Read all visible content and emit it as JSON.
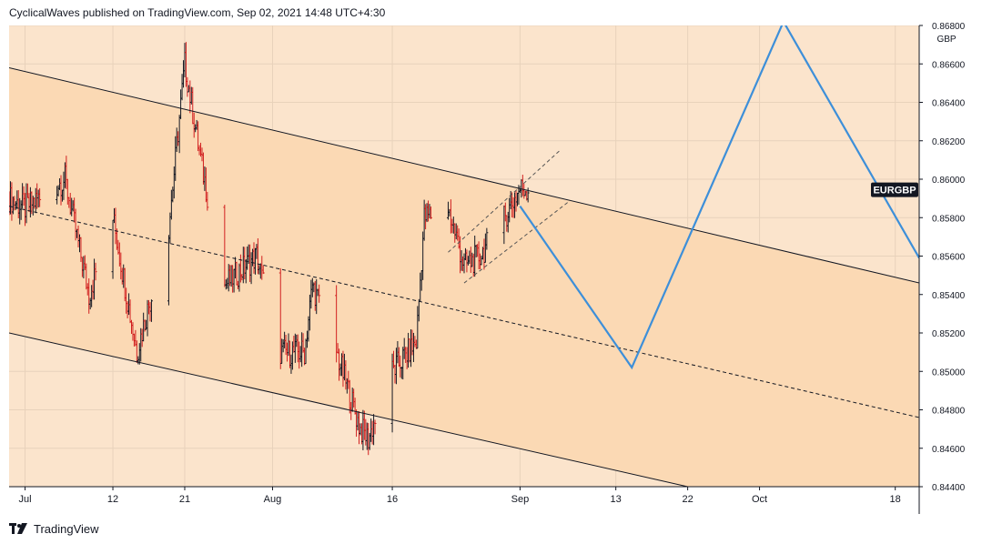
{
  "header": {
    "published_text": "CyclicalWaves published on TradingView.com, Sep 02, 2021 14:48 UTC+4:30"
  },
  "footer": {
    "brand": "TradingView"
  },
  "colors": {
    "outer_bg": "#fbe4cc",
    "channel_fill": "#fbd9b4",
    "line_color": "#131722",
    "projection": "#3d8fd9",
    "candle_up": "#131722",
    "candle_down": "#d11f1f",
    "grid": "#e8d2bb"
  },
  "chart_data": {
    "type": "ohlc",
    "symbol": "EURGBP",
    "currency_label": "GBP",
    "ylim": [
      0.844,
      0.868
    ],
    "price_ticks": [
      "0.84400",
      "0.84600",
      "0.84800",
      "0.85000",
      "0.85200",
      "0.85400",
      "0.85600",
      "0.85800",
      "0.86000",
      "0.86200",
      "0.86400",
      "0.86600",
      "0.86800"
    ],
    "x_ticks": [
      {
        "label": "Jul",
        "date": "2021-07-01"
      },
      {
        "label": "12",
        "date": "2021-07-12"
      },
      {
        "label": "21",
        "date": "2021-07-21"
      },
      {
        "label": "Aug",
        "date": "2021-08-01"
      },
      {
        "label": "16",
        "date": "2021-08-16"
      },
      {
        "label": "Sep",
        "date": "2021-09-01"
      },
      {
        "label": "13",
        "date": "2021-09-13"
      },
      {
        "label": "22",
        "date": "2021-09-22"
      },
      {
        "label": "Oct",
        "date": "2021-10-01"
      },
      {
        "label": "18",
        "date": "2021-10-18"
      }
    ],
    "x_range": [
      "2021-06-29",
      "2021-10-21"
    ],
    "price_path": [
      [
        "2021-06-29",
        0.859
      ],
      [
        "2021-07-01",
        0.8585
      ],
      [
        "2021-07-06",
        0.86
      ],
      [
        "2021-07-09",
        0.854
      ],
      [
        "2021-07-12",
        0.858
      ],
      [
        "2021-07-15",
        0.851
      ],
      [
        "2021-07-19",
        0.8575
      ],
      [
        "2021-07-21",
        0.866
      ],
      [
        "2021-07-23",
        0.861
      ],
      [
        "2021-07-26",
        0.8545
      ],
      [
        "2021-07-30",
        0.856
      ],
      [
        "2021-08-02",
        0.851
      ],
      [
        "2021-08-05",
        0.851
      ],
      [
        "2021-08-06",
        0.8545
      ],
      [
        "2021-08-09",
        0.851
      ],
      [
        "2021-08-12",
        0.847
      ],
      [
        "2021-08-13",
        0.8465
      ],
      [
        "2021-08-16",
        0.85
      ],
      [
        "2021-08-19",
        0.8515
      ],
      [
        "2021-08-20",
        0.858
      ],
      [
        "2021-08-23",
        0.8585
      ],
      [
        "2021-08-25",
        0.8555
      ],
      [
        "2021-08-27",
        0.856
      ],
      [
        "2021-08-30",
        0.858
      ],
      [
        "2021-09-01",
        0.8595
      ],
      [
        "2021-09-02",
        0.8595
      ]
    ],
    "channel": {
      "upper": [
        [
          "2021-06-29",
          0.8658
        ],
        [
          "2021-10-21",
          0.8546
        ]
      ],
      "middle": [
        [
          "2021-06-29",
          0.8586
        ],
        [
          "2021-10-21",
          0.8476
        ]
      ],
      "lower": [
        [
          "2021-06-29",
          0.852
        ],
        [
          "2021-09-22",
          0.844
        ]
      ]
    },
    "rising_channel": {
      "upper": [
        [
          "2021-08-23",
          0.8562
        ],
        [
          "2021-09-06",
          0.8615
        ]
      ],
      "lower": [
        [
          "2021-08-25",
          0.8546
        ],
        [
          "2021-09-07",
          0.8588
        ]
      ]
    },
    "projection": [
      [
        "2021-09-01",
        0.8586
      ],
      [
        "2021-09-15",
        0.8502
      ],
      [
        "2021-10-04",
        0.8682
      ],
      [
        "2021-10-21",
        0.8559
      ]
    ],
    "last_price_label": "EURGBP",
    "last_price": 0.85945
  }
}
